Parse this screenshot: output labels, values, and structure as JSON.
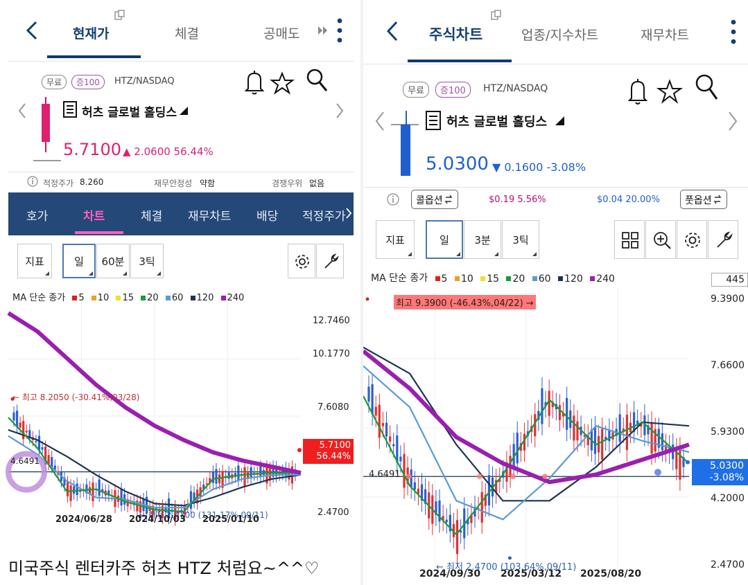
{
  "left": {
    "tabs": [
      "현재가",
      "체결",
      "공매도"
    ],
    "free_badge": "무료",
    "margin_badge": "증100",
    "ticker": "HTZ/NASDAQ",
    "stock_name": "허츠 글로벌 홀딩스",
    "price": "5.7100",
    "change": "▲ 2.0600 56.44%",
    "info": {
      "fair_label": "적정주가",
      "fair_value": "8.260",
      "stab_label": "재무안정성",
      "stab_value": "약함",
      "comp_label": "경쟁우위",
      "comp_value": "없음"
    },
    "sub_tabs": [
      "호가",
      "차트",
      "체결",
      "재무차트",
      "배당",
      "적정주가"
    ],
    "toolbar": [
      "지표",
      "일",
      "60분",
      "3틱"
    ],
    "legend_title": "MA 단순 종가",
    "ma_labels": [
      "5",
      "10",
      "15",
      "20",
      "60",
      "120",
      "240"
    ],
    "y_ticks": [
      "12.7460",
      "10.1770",
      "7.6080",
      "2.4700"
    ],
    "price_tag": [
      "5.7100",
      "56.44%"
    ],
    "high_label": "← 최고 8.2050 (-30.41%,03/28)",
    "low_label": "← 최저 2.4700 (131.17%,09/11)",
    "ref_label": "4.6491",
    "x_ticks": [
      "2024/06/28",
      "2024/10/03",
      "2025/01/10"
    ]
  },
  "right": {
    "tabs": [
      "주식차트",
      "업종/지수차트",
      "재무차트"
    ],
    "free_badge": "무료",
    "margin_badge": "증100",
    "ticker": "HTZ/NASDAQ",
    "stock_name": "허츠 글로벌 홀딩스",
    "price": "5.0300",
    "change": "▼ 0.1600 -3.08%",
    "call_label": "콜옵션",
    "call_vals": "$0.19  5.56%",
    "put_vals": "$0.04  20.00%",
    "put_label": "풋옵션",
    "toolbar": [
      "지표",
      "일",
      "3분",
      "3틱"
    ],
    "legend_title": "MA 단순 종가",
    "ma_labels": [
      "5",
      "10",
      "15",
      "20",
      "60",
      "120",
      "240"
    ],
    "count_box": "445",
    "y_ticks": [
      "9.3900",
      "7.6600",
      "5.9300",
      "4.2000",
      "2.4700"
    ],
    "price_tag": [
      "5.0300",
      "-3.08%"
    ],
    "high_label": "최고 9.3900 (-46.43%,04/22) →",
    "low_label": "← 최저 2.4700 (103.64%,09/11)",
    "ref_label": "4.6491",
    "x_ticks": [
      "2024/09/30",
      "2025/03/12",
      "2025/08/20"
    ]
  },
  "caption": "미국주식 렌터카주 허츠 HTZ 처럼요~^^♡",
  "colors": {
    "navy": "#123f75",
    "magenta": "#e0206f",
    "blue": "#1f5fcf",
    "ma5": "#e02020",
    "ma10": "#f0a020",
    "ma15": "#f0e030",
    "ma20": "#1a9a3a",
    "ma60": "#5a9ad0",
    "ma120": "#1d3450",
    "ma240": "#9a1fb0"
  },
  "chart_data": [
    {
      "type": "line",
      "title": "",
      "ylim": [
        2.47,
        12.746
      ],
      "x_ticks": [
        "2024/06/28",
        "2024/10/03",
        "2025/01/10"
      ],
      "series": [
        {
          "name": "240",
          "values": [
            12.4,
            11.5,
            10.2,
            8.9,
            7.8,
            6.9,
            6.2,
            5.6,
            5.2,
            4.9,
            4.6
          ]
        },
        {
          "name": "120",
          "values": [
            6.7,
            6.2,
            5.4,
            4.5,
            3.7,
            3.1,
            3.0,
            3.4,
            3.9,
            4.3,
            4.5
          ]
        },
        {
          "name": "60",
          "values": [
            6.4,
            5.5,
            4.2,
            3.4,
            3.3,
            2.9,
            2.9,
            3.8,
            4.3,
            4.5,
            4.5
          ]
        },
        {
          "name": "20",
          "values": [
            7.3,
            5.8,
            3.7,
            3.8,
            3.2,
            2.8,
            2.7,
            4.3,
            4.5,
            4.6,
            4.6
          ]
        }
      ],
      "high": {
        "value": 8.205,
        "label": "최고 8.2050 (-30.41%,03/28)"
      },
      "low": {
        "value": 2.47,
        "label": "최저 2.4700 (131.17%,09/11)"
      },
      "reference": 4.6491,
      "last": 5.71
    },
    {
      "type": "line",
      "title": "",
      "ylim": [
        2.47,
        9.39
      ],
      "x_ticks": [
        "2024/09/30",
        "2025/03/12",
        "2025/08/20"
      ],
      "series": [
        {
          "name": "240",
          "values": [
            8.0,
            7.0,
            5.7,
            5.0,
            4.5,
            4.7,
            5.1,
            5.5
          ]
        },
        {
          "name": "120",
          "values": [
            8.1,
            7.4,
            5.5,
            4.0,
            4.0,
            4.9,
            6.1,
            6.0
          ]
        },
        {
          "name": "60",
          "values": [
            7.6,
            6.5,
            4.0,
            3.5,
            4.6,
            6.0,
            5.6,
            5.3
          ]
        },
        {
          "name": "20",
          "values": [
            6.8,
            4.4,
            3.1,
            4.7,
            6.7,
            5.5,
            6.1,
            5.0
          ]
        }
      ],
      "high": {
        "value": 9.39,
        "label": "최고 9.3900 (-46.43%,04/22)"
      },
      "low": {
        "value": 2.47,
        "label": "최저 2.4700 (103.64%,09/11)"
      },
      "reference": 4.6491,
      "last": 5.03
    }
  ]
}
